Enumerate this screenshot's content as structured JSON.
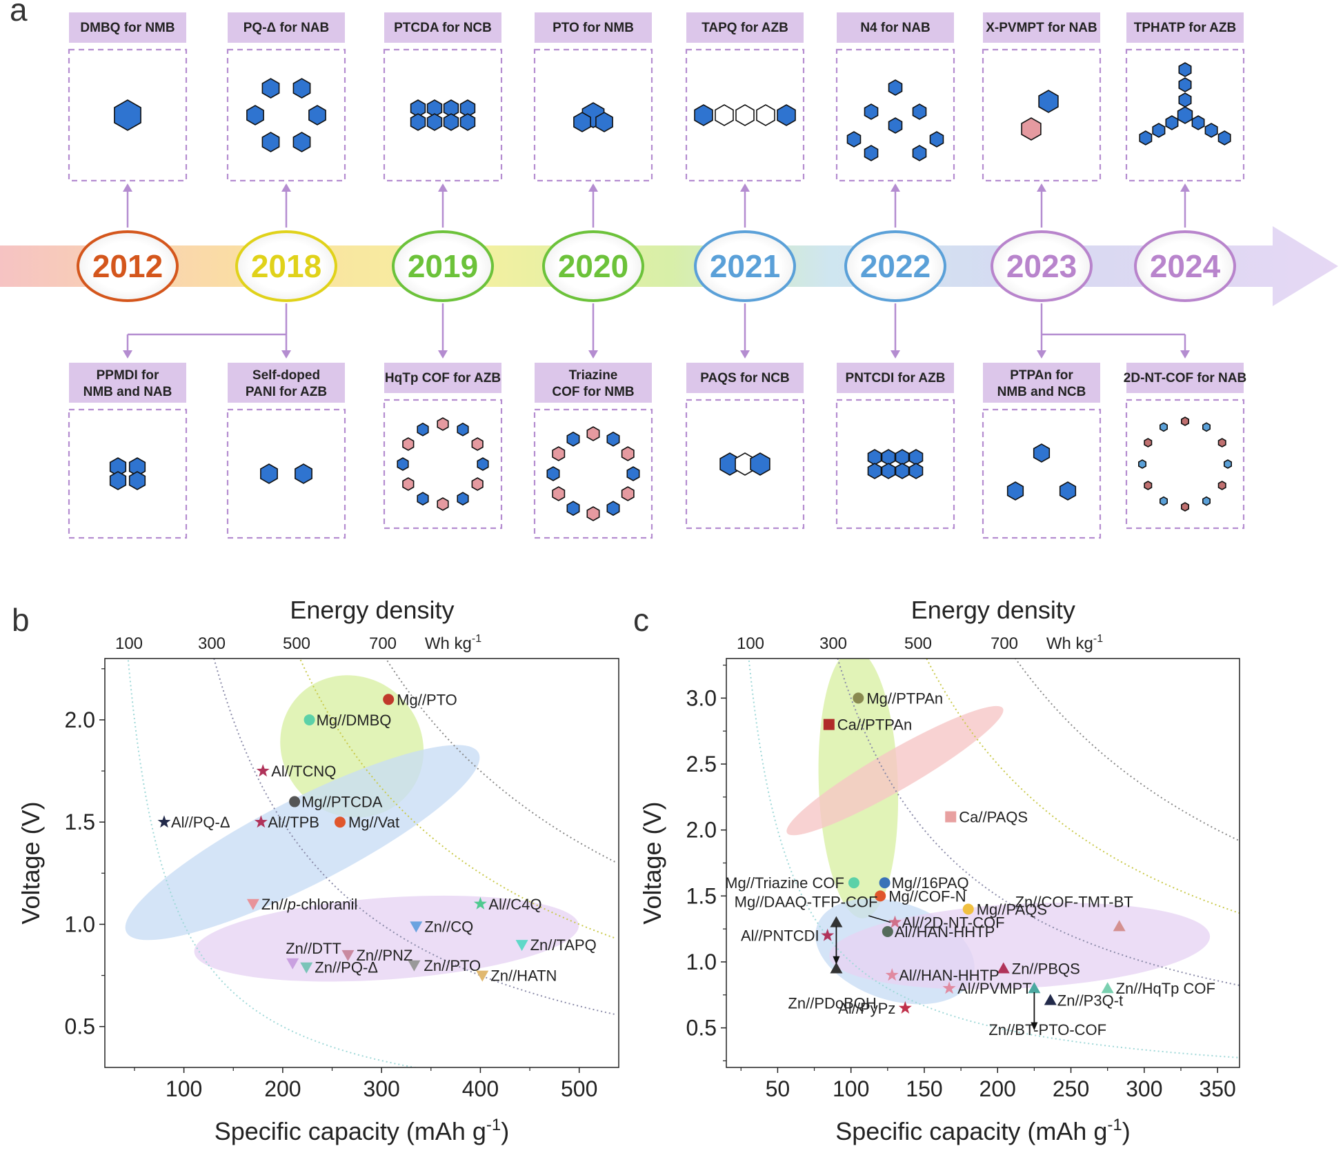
{
  "panel_a": {
    "letter": "a",
    "years": [
      {
        "label": "2012",
        "color": "#d4561c"
      },
      {
        "label": "2018",
        "color": "#e0d21a"
      },
      {
        "label": "2019",
        "color": "#6cc23a"
      },
      {
        "label": "2020",
        "color": "#6cc23a"
      },
      {
        "label": "2021",
        "color": "#5aa0d8"
      },
      {
        "label": "2022",
        "color": "#5aa0d8"
      },
      {
        "label": "2023",
        "color": "#b884cc"
      },
      {
        "label": "2024",
        "color": "#b884cc"
      }
    ],
    "top": [
      {
        "title": "DMBQ for NMB"
      },
      {
        "title": "PQ-Δ for NAB"
      },
      {
        "title": "PTCDA for NCB"
      },
      {
        "title": "PTO for NMB"
      },
      {
        "title": "TAPQ for AZB"
      },
      {
        "title": "N4 for NAB"
      },
      {
        "title": "X-PVMPT for NAB"
      },
      {
        "title": "TPHATP for AZB"
      }
    ],
    "bottom": [
      {
        "title": "PPMDI for NMB and NAB"
      },
      {
        "title": "Self-doped PANI for AZB"
      },
      {
        "title": "HqTp COF for AZB"
      },
      {
        "title": "Triazine COF for NMB"
      },
      {
        "title": "PAQS for NCB"
      },
      {
        "title": "PNTCDI for AZB"
      },
      {
        "title": "PTPAn for NMB and NCB"
      },
      {
        "title": "2D-NT-COF for NAB"
      }
    ]
  },
  "chart_data": [
    {
      "type": "scatter",
      "letter": "b",
      "top_title": "Energy density",
      "top_unit": "Wh kg-1",
      "top_ticks": [
        "100",
        "300",
        "500",
        "700"
      ],
      "xlabel": "Specific capacity (mAh g-1)",
      "ylabel": "Voltage (V)",
      "xlim": [
        20,
        540
      ],
      "ylim": [
        0.3,
        2.3
      ],
      "xticks": [
        100,
        200,
        300,
        400,
        500
      ],
      "yticks": [
        0.5,
        1.0,
        1.5,
        2.0
      ],
      "grid": false,
      "energy_curves": [
        100,
        300,
        500,
        700
      ],
      "points": [
        {
          "label": "Mg//PTO",
          "x": 307,
          "y": 2.1,
          "marker": "circle",
          "color": "#c0392b"
        },
        {
          "label": "Mg//DMBQ",
          "x": 227,
          "y": 2.0,
          "marker": "circle",
          "color": "#5cd1a8"
        },
        {
          "label": "Al//TCNQ",
          "x": 180,
          "y": 1.75,
          "marker": "star",
          "color": "#b0335a"
        },
        {
          "label": "Mg//PTCDA",
          "x": 212,
          "y": 1.6,
          "marker": "circle",
          "color": "#555555"
        },
        {
          "label": "Al//PQ-Δ",
          "x": 80,
          "y": 1.5,
          "marker": "star",
          "color": "#222a4a"
        },
        {
          "label": "Al//TPB",
          "x": 178,
          "y": 1.5,
          "marker": "star",
          "color": "#b0335a"
        },
        {
          "label": "Mg//Vat",
          "x": 258,
          "y": 1.5,
          "marker": "circle",
          "color": "#e0562c"
        },
        {
          "label": "Zn//p-chloranil",
          "x": 170,
          "y": 1.1,
          "marker": "tri-down",
          "color": "#e8939a"
        },
        {
          "label": "Al//C4Q",
          "x": 400,
          "y": 1.1,
          "marker": "star",
          "color": "#4fc98f"
        },
        {
          "label": "Zn//CQ",
          "x": 335,
          "y": 0.99,
          "marker": "tri-down",
          "color": "#6aa3e0"
        },
        {
          "label": "Zn//TAPQ",
          "x": 442,
          "y": 0.9,
          "marker": "tri-down",
          "color": "#5fd8c8"
        },
        {
          "label": "Zn//DTT",
          "x": 210,
          "y": 0.81,
          "marker": "tri-down",
          "color": "#c9a0e0"
        },
        {
          "label": "Zn//PNZ",
          "x": 266,
          "y": 0.85,
          "marker": "tri-down",
          "color": "#c98aa0"
        },
        {
          "label": "Zn//PQ-Δ",
          "x": 224,
          "y": 0.79,
          "marker": "tri-down",
          "color": "#7ac4b8"
        },
        {
          "label": "Zn//PTO",
          "x": 333,
          "y": 0.8,
          "marker": "tri-down",
          "color": "#999999"
        },
        {
          "label": "Zn//HATN",
          "x": 402,
          "y": 0.75,
          "marker": "tri-down",
          "color": "#e0b870"
        }
      ],
      "regions": [
        {
          "name": "green",
          "color": "#d9f0a3"
        },
        {
          "name": "blue",
          "color": "#c8dcf5"
        },
        {
          "name": "purple",
          "color": "#e7d4f3"
        }
      ]
    },
    {
      "type": "scatter",
      "letter": "c",
      "top_title": "Energy density",
      "top_unit": "Wh kg-1",
      "top_ticks": [
        "100",
        "300",
        "500",
        "700"
      ],
      "xlabel": "Specific capacity (mAh g-1)",
      "ylabel": "Voltage (V)",
      "xlim": [
        15,
        365
      ],
      "ylim": [
        0.2,
        3.3
      ],
      "xticks": [
        50,
        100,
        150,
        200,
        250,
        300,
        350
      ],
      "yticks": [
        0.5,
        1.0,
        1.5,
        2.0,
        2.5,
        3.0
      ],
      "grid": false,
      "energy_curves": [
        100,
        300,
        500,
        700
      ],
      "points": [
        {
          "label": "Mg//PTPAn",
          "x": 105,
          "y": 3.0,
          "marker": "circle",
          "color": "#8a8a50"
        },
        {
          "label": "Ca//PTPAn",
          "x": 85,
          "y": 2.8,
          "marker": "square",
          "color": "#b02a2a"
        },
        {
          "label": "Ca//PAQS",
          "x": 168,
          "y": 2.1,
          "marker": "square",
          "color": "#e8a0a0"
        },
        {
          "label": "Mg//Triazine COF",
          "x": 102,
          "y": 1.6,
          "marker": "circle",
          "color": "#5cd1a8"
        },
        {
          "label": "Mg//16PAQ",
          "x": 123,
          "y": 1.6,
          "marker": "circle",
          "color": "#3a72b8"
        },
        {
          "label": "Mg//COF-N",
          "x": 120,
          "y": 1.5,
          "marker": "circle",
          "color": "#e0562c"
        },
        {
          "label": "Mg//PAQS",
          "x": 180,
          "y": 1.4,
          "marker": "circle",
          "color": "#f0c040"
        },
        {
          "label": "Mg//DAAQ-TFP-COF",
          "x": 90,
          "y": 1.3,
          "marker": "tri-up",
          "color": "#333333"
        },
        {
          "label": "Al//2D-NT-COF",
          "x": 130,
          "y": 1.3,
          "marker": "star",
          "color": "#d0708a"
        },
        {
          "label": "Al//HAN-HHTP",
          "x": 125,
          "y": 1.23,
          "marker": "circle",
          "color": "#556b5a"
        },
        {
          "label": "Al//PNTCDI",
          "x": 84,
          "y": 1.2,
          "marker": "star",
          "color": "#b0335a"
        },
        {
          "label": "Zn//COF-TMT-BT",
          "x": 283,
          "y": 1.27,
          "marker": "tri-up",
          "color": "#d49090"
        },
        {
          "label": "Zn//PDoBQH",
          "x": 90,
          "y": 0.95,
          "marker": "tri-up",
          "color": "#333333"
        },
        {
          "label": "Zn//PBQS",
          "x": 204,
          "y": 0.95,
          "marker": "tri-up",
          "color": "#b0335a"
        },
        {
          "label": "Al//HAN-HHTP",
          "x": 128,
          "y": 0.9,
          "marker": "star",
          "color": "#e08aa0"
        },
        {
          "label": "Al//PVMPT",
          "x": 167,
          "y": 0.8,
          "marker": "star",
          "color": "#e08aa0"
        },
        {
          "label": "Zn//BT-PTO-COF",
          "x": 225,
          "y": 0.8,
          "marker": "tri-up",
          "color": "#4aa8a0"
        },
        {
          "label": "Zn//P3Q-t",
          "x": 236,
          "y": 0.71,
          "marker": "tri-up",
          "color": "#222a4a"
        },
        {
          "label": "Zn//HqTp COF",
          "x": 275,
          "y": 0.8,
          "marker": "tri-up",
          "color": "#7ad0b0"
        },
        {
          "label": "Al//PyPz",
          "x": 137,
          "y": 0.65,
          "marker": "star",
          "color": "#c0304a"
        }
      ],
      "regions": [
        {
          "name": "green",
          "color": "#d9f0a3"
        },
        {
          "name": "red",
          "color": "#f6c5c5"
        },
        {
          "name": "blue",
          "color": "#c8dcf5"
        },
        {
          "name": "purple",
          "color": "#e7d4f3"
        }
      ]
    }
  ]
}
